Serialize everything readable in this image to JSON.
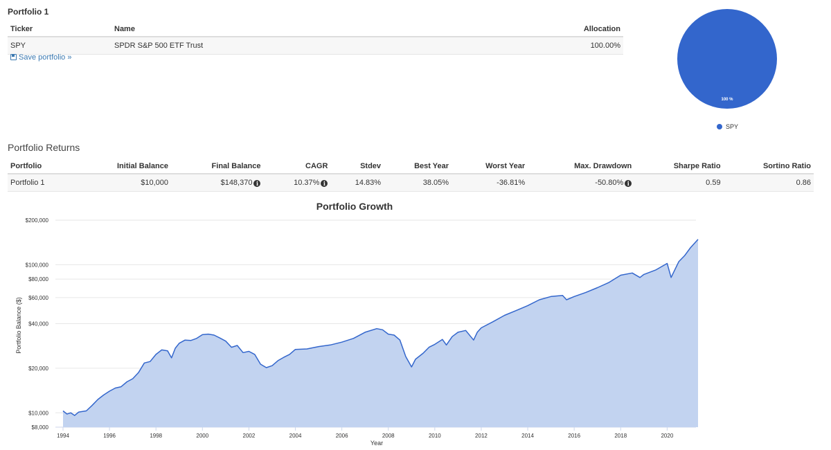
{
  "portfolio_section": {
    "title": "Portfolio 1",
    "columns": [
      "Ticker",
      "Name",
      "Allocation"
    ],
    "rows": [
      {
        "ticker": "SPY",
        "name": "SPDR S&P 500 ETF Trust",
        "allocation": "100.00%"
      }
    ],
    "save_link": "Save portfolio »"
  },
  "pie_chart": {
    "slices": [
      {
        "label": "SPY",
        "value": 100,
        "color": "#3366cc"
      }
    ],
    "slice_label": "100 %",
    "legend": [
      "SPY"
    ]
  },
  "returns_section": {
    "title": "Portfolio Returns",
    "columns": [
      "Portfolio",
      "Initial Balance",
      "Final Balance",
      "CAGR",
      "Stdev",
      "Best Year",
      "Worst Year",
      "Max. Drawdown",
      "Sharpe Ratio",
      "Sortino Ratio"
    ],
    "rows": [
      {
        "portfolio": "Portfolio 1",
        "initial_balance": "$10,000",
        "final_balance": "$148,370",
        "cagr": "10.37%",
        "stdev": "14.83%",
        "best_year": "38.05%",
        "worst_year": "-36.81%",
        "max_drawdown": "-50.80%",
        "sharpe_ratio": "0.59",
        "sortino_ratio": "0.86"
      }
    ]
  },
  "chart_data": {
    "type": "area",
    "title": "Portfolio Growth",
    "xlabel": "Year",
    "ylabel": "Portfolio Balance ($)",
    "y_scale": "log",
    "ylim": [
      8000,
      200000
    ],
    "xlim": [
      1994,
      2021.33
    ],
    "y_ticks": [
      {
        "value": 8000,
        "label": "$8,000"
      },
      {
        "value": 10000,
        "label": "$10,000"
      },
      {
        "value": 20000,
        "label": "$20,000"
      },
      {
        "value": 40000,
        "label": "$40,000"
      },
      {
        "value": 60000,
        "label": "$60,000"
      },
      {
        "value": 80000,
        "label": "$80,000"
      },
      {
        "value": 100000,
        "label": "$100,000"
      },
      {
        "value": 200000,
        "label": "$200,000"
      }
    ],
    "x_ticks": [
      "1994",
      "1996",
      "1998",
      "2000",
      "2002",
      "2004",
      "2006",
      "2008",
      "2010",
      "2012",
      "2014",
      "2016",
      "2018",
      "2020"
    ],
    "grid": true,
    "line_color": "#3366cc",
    "fill_color": "#c2d3f0",
    "series": [
      {
        "x": [
          1994.0,
          1994.17,
          1994.33,
          1994.5,
          1994.67,
          1994.83,
          1995.0,
          1995.25,
          1995.5,
          1995.75,
          1996.0,
          1996.25,
          1996.5,
          1996.75,
          1997.0,
          1997.25,
          1997.5,
          1997.75,
          1998.0,
          1998.25,
          1998.5,
          1998.67,
          1998.83,
          1999.0,
          1999.25,
          1999.5,
          1999.75,
          2000.0,
          2000.25,
          2000.5,
          2000.75,
          2001.0,
          2001.25,
          2001.5,
          2001.75,
          2002.0,
          2002.25,
          2002.5,
          2002.75,
          2003.0,
          2003.25,
          2003.5,
          2003.75,
          2004.0,
          2004.5,
          2005.0,
          2005.5,
          2006.0,
          2006.5,
          2007.0,
          2007.5,
          2007.75,
          2008.0,
          2008.25,
          2008.5,
          2008.75,
          2009.0,
          2009.17,
          2009.5,
          2009.75,
          2010.0,
          2010.33,
          2010.5,
          2010.75,
          2011.0,
          2011.33,
          2011.67,
          2011.83,
          2012.0,
          2012.5,
          2013.0,
          2013.5,
          2014.0,
          2014.5,
          2015.0,
          2015.5,
          2015.67,
          2016.0,
          2016.5,
          2017.0,
          2017.5,
          2018.0,
          2018.5,
          2018.83,
          2019.0,
          2019.5,
          2020.0,
          2020.17,
          2020.5,
          2020.75,
          2021.0,
          2021.33
        ],
        "y": [
          10300,
          9800,
          10000,
          9600,
          10100,
          10200,
          10300,
          11200,
          12300,
          13200,
          14000,
          14700,
          15000,
          16200,
          17000,
          18700,
          21700,
          22200,
          24800,
          26600,
          26200,
          23500,
          27300,
          29500,
          31000,
          30800,
          31800,
          33700,
          34000,
          33500,
          32000,
          30500,
          27700,
          28500,
          25500,
          26000,
          24800,
          21300,
          20200,
          20800,
          22500,
          23700,
          24800,
          26800,
          27000,
          28000,
          28700,
          30000,
          31800,
          35000,
          37000,
          36400,
          34000,
          33500,
          31000,
          24000,
          20400,
          23000,
          25300,
          27700,
          29000,
          31300,
          28700,
          32700,
          35000,
          36000,
          31000,
          35000,
          37500,
          41200,
          45500,
          49000,
          53000,
          58000,
          61000,
          62000,
          58000,
          61000,
          65000,
          70000,
          76000,
          85000,
          88000,
          82000,
          86000,
          92000,
          102000,
          82000,
          105000,
          115000,
          130000,
          148370
        ]
      }
    ]
  }
}
